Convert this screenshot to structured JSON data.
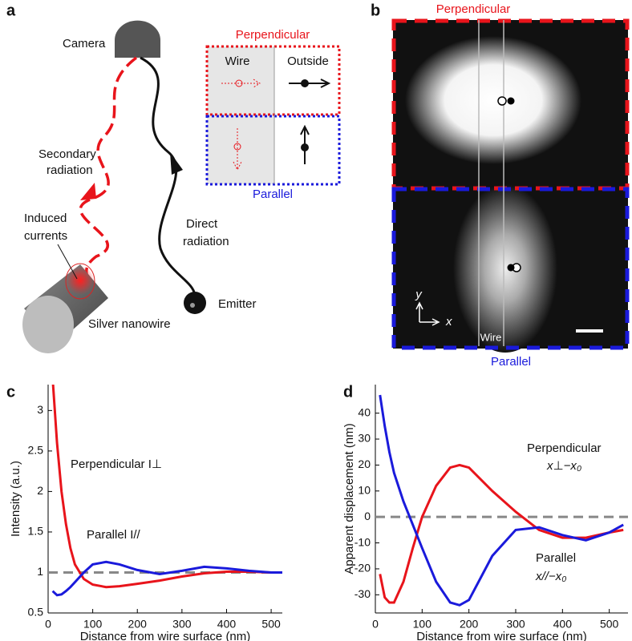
{
  "panels": {
    "a": "a",
    "b": "b",
    "c": "c",
    "d": "d"
  },
  "diagram": {
    "camera": "Camera",
    "secondary": [
      "Secondary",
      "radiation"
    ],
    "induced": [
      "Induced",
      "currents"
    ],
    "direct": [
      "Direct",
      "radiation"
    ],
    "emitter": "Emitter",
    "nanowire": "Silver nanowire",
    "inset": {
      "top": "Perpendicular",
      "bottom": "Parallel",
      "left": "Wire",
      "right": "Outside"
    }
  },
  "image": {
    "top": "Perpendicular",
    "bottom": "Parallel",
    "y_axis": "y",
    "x_axis": "x",
    "wire": "Wire"
  },
  "chart_data": [
    {
      "type": "line",
      "ylabel": "Intensity (a.u.)",
      "xlabel": "Distance from wire surface (nm)",
      "x": [
        10,
        20,
        30,
        40,
        50,
        60,
        80,
        100,
        130,
        160,
        200,
        250,
        300,
        350,
        400,
        450,
        500,
        525
      ],
      "series": [
        {
          "name": "Perpendicular I⊥",
          "color": "#e8141b",
          "values": [
            3.4,
            2.6,
            2.0,
            1.6,
            1.3,
            1.1,
            0.92,
            0.85,
            0.82,
            0.83,
            0.86,
            0.9,
            0.95,
            0.99,
            1.01,
            1.01,
            1.0,
            1.0
          ]
        },
        {
          "name": "Parallel I//",
          "color": "#1a1adb",
          "values": [
            0.77,
            0.72,
            0.73,
            0.77,
            0.82,
            0.88,
            1.0,
            1.1,
            1.13,
            1.1,
            1.03,
            0.98,
            1.02,
            1.07,
            1.05,
            1.02,
            1.0,
            1.0
          ]
        }
      ],
      "reference": 1,
      "xlim": [
        0,
        525
      ],
      "ylim": [
        0.5,
        3.32
      ],
      "xticks": [
        0,
        100,
        200,
        300,
        400,
        500
      ],
      "yticks": [
        0.5,
        1,
        1.5,
        2,
        2.5,
        3
      ]
    },
    {
      "type": "line",
      "ylabel": "Apparent displacement (nm)",
      "xlabel": "Distance from wire surface (nm)",
      "x": [
        10,
        20,
        30,
        40,
        60,
        80,
        100,
        130,
        160,
        180,
        200,
        250,
        300,
        350,
        400,
        450,
        500,
        530
      ],
      "series": [
        {
          "name": "Perpendicular",
          "formula": "x⊥−x₀",
          "color": "#e8141b",
          "values": [
            -22,
            -31,
            -33,
            -33,
            -25,
            -12,
            0,
            12,
            19,
            20,
            19,
            10,
            2,
            -5,
            -8,
            -8,
            -6,
            -5
          ]
        },
        {
          "name": "Parallel",
          "formula": "x//−x₀",
          "color": "#1a1adb",
          "values": [
            47,
            35,
            25,
            17,
            6,
            -3,
            -12,
            -25,
            -33,
            -34,
            -32,
            -15,
            -5,
            -4,
            -7,
            -9,
            -6,
            -3
          ]
        }
      ],
      "reference": 0,
      "xlim": [
        0,
        540
      ],
      "ylim": [
        -37,
        51
      ],
      "xticks": [
        0,
        100,
        200,
        300,
        400,
        500
      ],
      "yticks": [
        -30,
        -20,
        -10,
        0,
        10,
        20,
        30,
        40
      ]
    }
  ]
}
